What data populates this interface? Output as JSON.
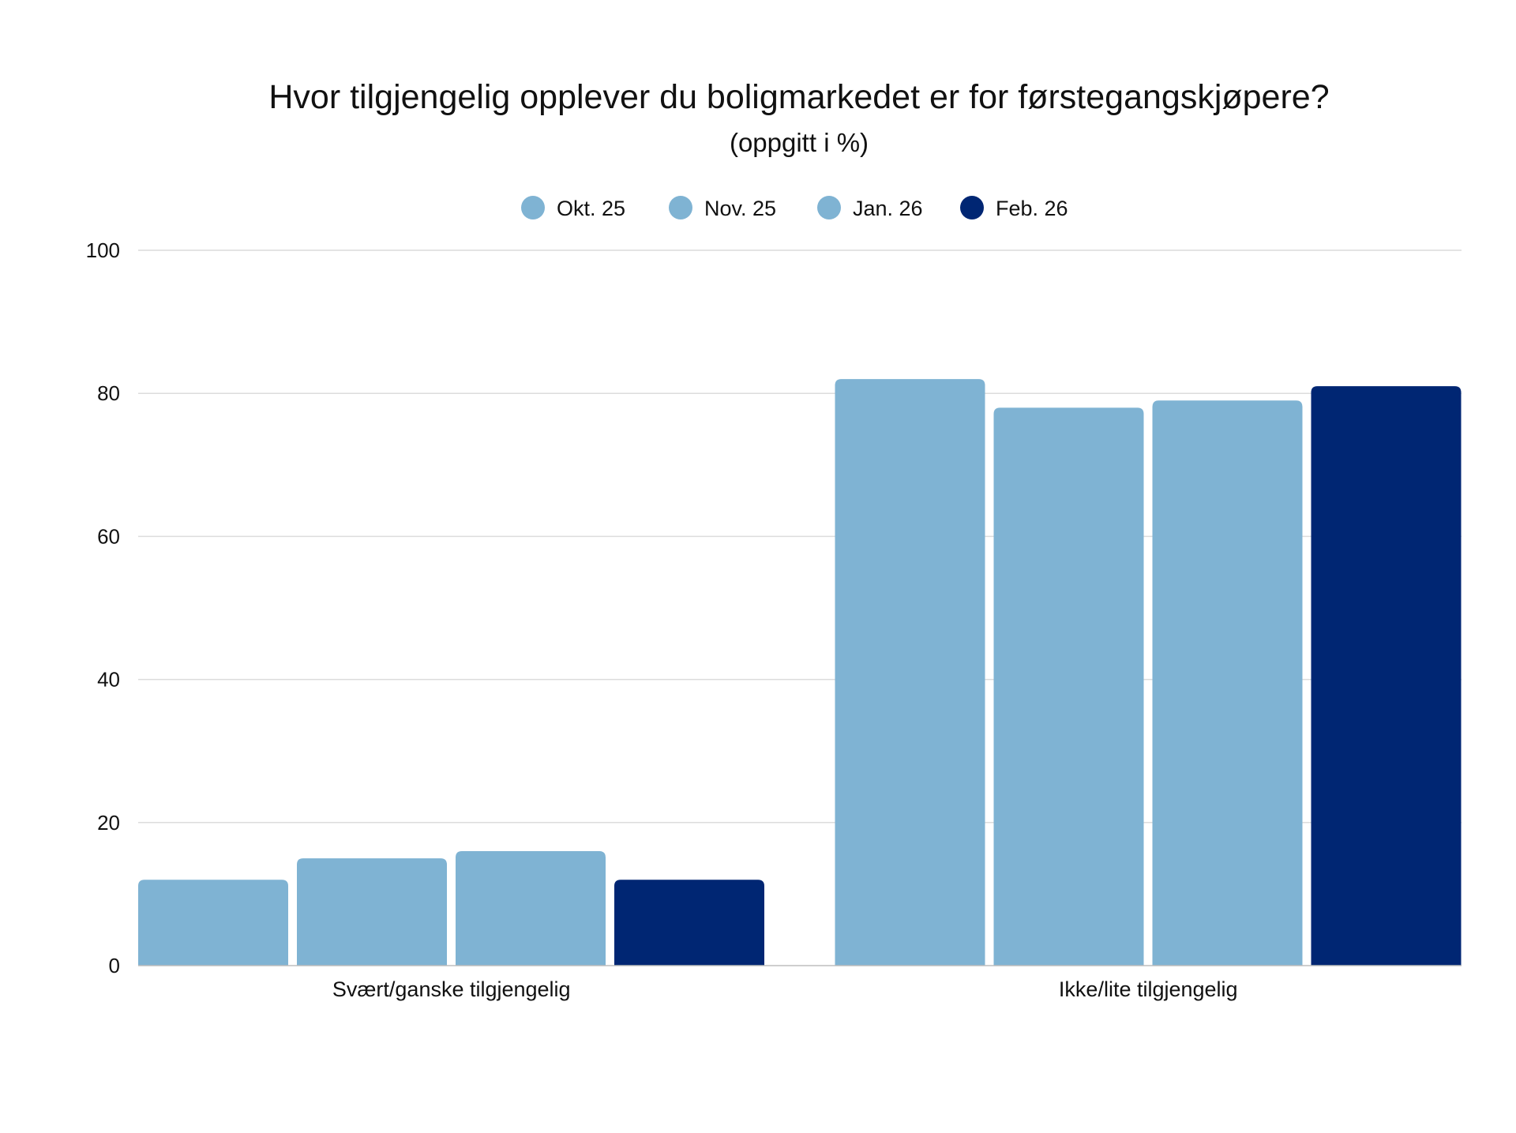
{
  "chart_data": {
    "type": "bar",
    "title": "Hvor tilgjengelig opplever du boligmarkedet er for førstegangskjøpere?",
    "subtitle": "(oppgitt i %)",
    "categories": [
      "Svært/ganske tilgjengelig",
      "Ikke/lite tilgjengelig"
    ],
    "series": [
      {
        "name": "Okt. 25",
        "color": "#7fb3d3",
        "values": [
          12,
          82
        ]
      },
      {
        "name": "Nov. 25",
        "color": "#7fb3d3",
        "values": [
          15,
          78
        ]
      },
      {
        "name": "Jan. 26",
        "color": "#7fb3d3",
        "values": [
          16,
          79
        ]
      },
      {
        "name": "Feb. 26",
        "color": "#002673",
        "values": [
          12,
          81
        ]
      }
    ],
    "ylim": [
      0,
      100
    ],
    "yticks": [
      "0",
      "20",
      "40",
      "60",
      "80",
      "100"
    ],
    "xlabel": "",
    "ylabel": "",
    "grid": true,
    "legend_position": "top-center"
  }
}
